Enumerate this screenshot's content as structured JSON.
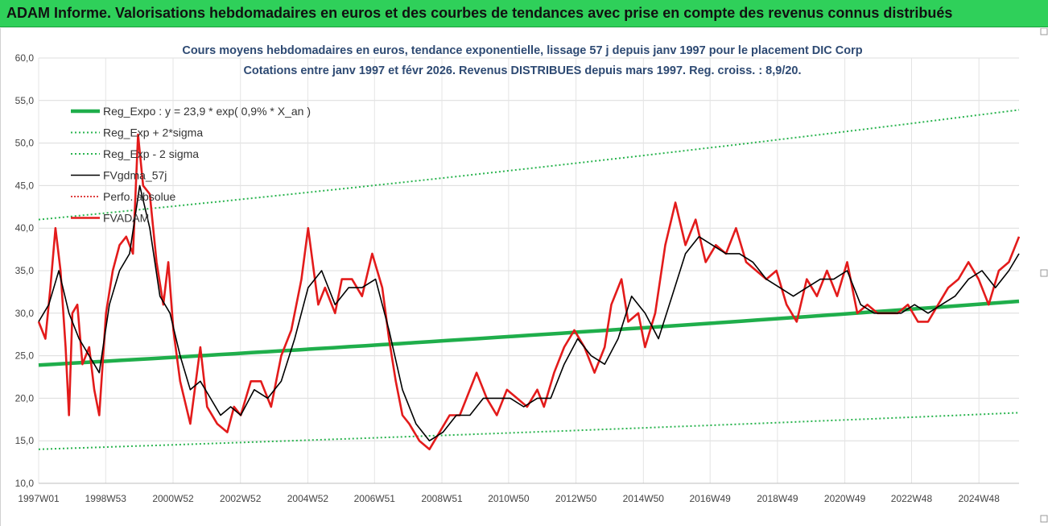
{
  "header": {
    "title": "ADAM Informe. Valorisations hebdomadaires en euros et des courbes de tendances avec prise en compte des revenus connus distribués"
  },
  "colors": {
    "header_bg": "#2fd05a",
    "reg_expo": "#1fae4b",
    "sigma": "#2ab44f",
    "fvgdma": "#000000",
    "perfo": "#d40000",
    "fvadam": "#e31b1b",
    "title_text": "#2e4a73"
  },
  "chart_data": {
    "type": "line",
    "title": "Cours moyens hebdomadaires en euros, tendance exponentielle, lissage 57 j depuis janv 1997 pour le placement DIC Corp",
    "subtitle": "Cotations entre janv 1997 et févr 2026. Revenus DISTRIBUES depuis mars 1997. Reg. croiss. : 8,9/20.",
    "xlabel": "",
    "ylabel": "",
    "x_range_years": [
      1997.0,
      2026.1
    ],
    "ylim": [
      10,
      60
    ],
    "y_ticks": [
      "10,0",
      "15,0",
      "20,0",
      "25,0",
      "30,0",
      "35,0",
      "40,0",
      "45,0",
      "50,0",
      "55,0",
      "60,0"
    ],
    "x_ticks": [
      {
        "label": "1997W01",
        "year": 1997.0
      },
      {
        "label": "1998W53",
        "year": 1998.99
      },
      {
        "label": "2000W52",
        "year": 2000.99
      },
      {
        "label": "2002W52",
        "year": 2002.99
      },
      {
        "label": "2004W52",
        "year": 2004.99
      },
      {
        "label": "2006W51",
        "year": 2006.97
      },
      {
        "label": "2008W51",
        "year": 2008.97
      },
      {
        "label": "2010W50",
        "year": 2010.95
      },
      {
        "label": "2012W50",
        "year": 2012.95
      },
      {
        "label": "2014W50",
        "year": 2014.95
      },
      {
        "label": "2016W49",
        "year": 2016.93
      },
      {
        "label": "2018W49",
        "year": 2018.93
      },
      {
        "label": "2020W49",
        "year": 2020.93
      },
      {
        "label": "2022W48",
        "year": 2022.91
      },
      {
        "label": "2024W48",
        "year": 2024.91
      }
    ],
    "grid": true,
    "legend_position": "top-left",
    "legend": [
      {
        "key": "reg_expo",
        "label": "Reg_Expo : y = 23,9 * exp( 0,9% *  X_an )"
      },
      {
        "key": "upper",
        "label": "Reg_Exp + 2*sigma"
      },
      {
        "key": "lower",
        "label": "Reg_Exp - 2 sigma"
      },
      {
        "key": "fvgdma",
        "label": "FVgdma_57j"
      },
      {
        "key": "perfo",
        "label": "Perfo. absolue"
      },
      {
        "key": "fvadam",
        "label": "FVADAM"
      }
    ],
    "series": [
      {
        "key": "reg_expo",
        "name": "Reg_Expo : y = 23,9 * exp( 0,9% *  X_an )",
        "x": [
          1997.0,
          2026.1
        ],
        "y": [
          23.9,
          31.4
        ]
      },
      {
        "key": "upper",
        "name": "Reg_Exp + 2*sigma",
        "x": [
          1997.0,
          2026.1
        ],
        "y": [
          41.0,
          53.9
        ]
      },
      {
        "key": "lower",
        "name": "Reg_Exp - 2 sigma",
        "x": [
          1997.0,
          2026.1
        ],
        "y": [
          14.0,
          18.3
        ]
      },
      {
        "key": "fvadam",
        "name": "FVADAM",
        "x": [
          1997.0,
          1997.2,
          1997.35,
          1997.5,
          1997.65,
          1997.8,
          1997.9,
          1998.0,
          1998.15,
          1998.3,
          1998.5,
          1998.65,
          1998.8,
          1999.0,
          1999.2,
          1999.4,
          1999.6,
          1999.8,
          1999.95,
          2000.1,
          2000.3,
          2000.5,
          2000.7,
          2000.85,
          2001.0,
          2001.2,
          2001.5,
          2001.8,
          2002.0,
          2002.3,
          2002.6,
          2002.8,
          2003.0,
          2003.3,
          2003.6,
          2003.9,
          2004.2,
          2004.5,
          2004.8,
          2005.0,
          2005.3,
          2005.5,
          2005.8,
          2006.0,
          2006.3,
          2006.6,
          2006.9,
          2007.2,
          2007.4,
          2007.6,
          2007.8,
          2008.0,
          2008.3,
          2008.6,
          2008.9,
          2009.2,
          2009.5,
          2009.7,
          2010.0,
          2010.3,
          2010.6,
          2010.9,
          2011.2,
          2011.5,
          2011.8,
          2012.0,
          2012.3,
          2012.6,
          2012.9,
          2013.2,
          2013.5,
          2013.8,
          2014.0,
          2014.3,
          2014.5,
          2014.8,
          2015.0,
          2015.3,
          2015.6,
          2015.9,
          2016.2,
          2016.5,
          2016.8,
          2017.1,
          2017.4,
          2017.7,
          2018.0,
          2018.3,
          2018.6,
          2018.9,
          2019.2,
          2019.5,
          2019.8,
          2020.1,
          2020.4,
          2020.7,
          2021.0,
          2021.3,
          2021.6,
          2021.9,
          2022.2,
          2022.5,
          2022.8,
          2023.1,
          2023.4,
          2023.7,
          2024.0,
          2024.3,
          2024.6,
          2024.9,
          2025.2,
          2025.5,
          2025.8,
          2026.1
        ],
        "y": [
          29.0,
          27.0,
          33.0,
          40.0,
          35.0,
          26.0,
          18.0,
          30.0,
          31.0,
          24.0,
          26.0,
          21.0,
          18.0,
          30.0,
          35.0,
          38.0,
          39.0,
          37.0,
          51.0,
          45.0,
          44.0,
          36.0,
          31.0,
          36.0,
          28.0,
          22.0,
          17.0,
          26.0,
          19.0,
          17.0,
          16.0,
          19.0,
          18.0,
          22.0,
          22.0,
          19.0,
          25.0,
          28.0,
          34.0,
          40.0,
          31.0,
          33.0,
          30.0,
          34.0,
          34.0,
          32.0,
          37.0,
          33.0,
          27.0,
          22.0,
          18.0,
          17.0,
          15.0,
          14.0,
          16.0,
          18.0,
          18.0,
          20.0,
          23.0,
          20.0,
          18.0,
          21.0,
          20.0,
          19.0,
          21.0,
          19.0,
          23.0,
          26.0,
          28.0,
          26.0,
          23.0,
          26.0,
          31.0,
          34.0,
          29.0,
          30.0,
          26.0,
          30.0,
          38.0,
          43.0,
          38.0,
          41.0,
          36.0,
          38.0,
          37.0,
          40.0,
          36.0,
          35.0,
          34.0,
          35.0,
          31.0,
          29.0,
          34.0,
          32.0,
          35.0,
          32.0,
          36.0,
          30.0,
          31.0,
          30.0,
          30.0,
          30.0,
          31.0,
          29.0,
          29.0,
          31.0,
          33.0,
          34.0,
          36.0,
          34.0,
          31.0,
          35.0,
          36.0,
          39.0
        ]
      },
      {
        "key": "fvgdma",
        "name": "FVgdma_57j",
        "x": [
          1997.0,
          1997.3,
          1997.6,
          1997.9,
          1998.2,
          1998.5,
          1998.8,
          1999.1,
          1999.4,
          1999.7,
          2000.0,
          2000.3,
          2000.6,
          2000.9,
          2001.2,
          2001.5,
          2001.8,
          2002.1,
          2002.4,
          2002.7,
          2003.0,
          2003.4,
          2003.8,
          2004.2,
          2004.6,
          2005.0,
          2005.4,
          2005.8,
          2006.2,
          2006.6,
          2007.0,
          2007.4,
          2007.8,
          2008.2,
          2008.6,
          2009.0,
          2009.4,
          2009.8,
          2010.2,
          2010.6,
          2011.0,
          2011.4,
          2011.8,
          2012.2,
          2012.6,
          2013.0,
          2013.4,
          2013.8,
          2014.2,
          2014.6,
          2015.0,
          2015.4,
          2015.8,
          2016.2,
          2016.6,
          2017.0,
          2017.4,
          2017.8,
          2018.2,
          2018.6,
          2019.0,
          2019.4,
          2019.8,
          2020.2,
          2020.6,
          2021.0,
          2021.4,
          2021.8,
          2022.2,
          2022.6,
          2023.0,
          2023.4,
          2023.8,
          2024.2,
          2024.6,
          2025.0,
          2025.4,
          2025.8,
          2026.1
        ],
        "y": [
          29.0,
          31.0,
          35.0,
          30.0,
          27.0,
          25.0,
          23.0,
          31.0,
          35.0,
          37.0,
          45.0,
          40.0,
          32.0,
          30.0,
          25.0,
          21.0,
          22.0,
          20.0,
          18.0,
          19.0,
          18.0,
          21.0,
          20.0,
          22.0,
          27.0,
          33.0,
          35.0,
          31.0,
          33.0,
          33.0,
          34.0,
          28.0,
          21.0,
          17.0,
          15.0,
          16.0,
          18.0,
          18.0,
          20.0,
          20.0,
          20.0,
          19.0,
          20.0,
          20.0,
          24.0,
          27.0,
          25.0,
          24.0,
          27.0,
          32.0,
          30.0,
          27.0,
          32.0,
          37.0,
          39.0,
          38.0,
          37.0,
          37.0,
          36.0,
          34.0,
          33.0,
          32.0,
          33.0,
          34.0,
          34.0,
          35.0,
          31.0,
          30.0,
          30.0,
          30.0,
          31.0,
          30.0,
          31.0,
          32.0,
          34.0,
          35.0,
          33.0,
          35.0,
          37.0
        ]
      }
    ]
  }
}
